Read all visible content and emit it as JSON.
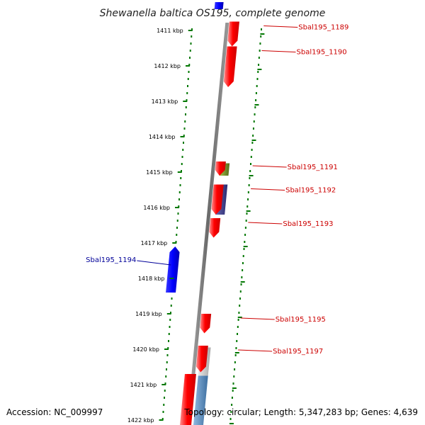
{
  "title": "Shewanella baltica OS195, complete genome",
  "footer": {
    "accession": "Accession: NC_009997",
    "topology": "Topology: circular; Length: 5,347,283 bp; Genes: 4,639"
  },
  "colors": {
    "forward_gene": "#ff0000",
    "reverse_gene": "#0000ff",
    "forward_label": "#cc0000",
    "reverse_label": "#000099",
    "scale_ticks": "#007700",
    "backbone": "#777777",
    "olive_feature": "#6b8e23",
    "purple_feature": "#3a3a8a",
    "gray_feature": "#c0c0c0",
    "lightblue_feature": "#5b8fc0"
  },
  "scale_ticks": [
    {
      "label": "1411 kbp",
      "kbp": 1411
    },
    {
      "label": "1412 kbp",
      "kbp": 1412
    },
    {
      "label": "1413 kbp",
      "kbp": 1413
    },
    {
      "label": "1414 kbp",
      "kbp": 1414
    },
    {
      "label": "1415 kbp",
      "kbp": 1415
    },
    {
      "label": "1416 kbp",
      "kbp": 1416
    },
    {
      "label": "1417 kbp",
      "kbp": 1417
    },
    {
      "label": "1418 kbp",
      "kbp": 1418
    },
    {
      "label": "1419 kbp",
      "kbp": 1419
    },
    {
      "label": "1420 kbp",
      "kbp": 1420
    },
    {
      "label": "1421 kbp",
      "kbp": 1421
    },
    {
      "label": "1422 kbp",
      "kbp": 1422
    }
  ],
  "genes": [
    {
      "name": "Sbal195_1189",
      "strand": "+",
      "start_kbp": 1410.75,
      "end_kbp": 1411.45,
      "track": "forward"
    },
    {
      "name": "Sbal195_1190",
      "strand": "+",
      "start_kbp": 1411.45,
      "end_kbp": 1412.6,
      "track": "forward"
    },
    {
      "name": "Sbal195_1191",
      "strand": "+",
      "start_kbp": 1414.7,
      "end_kbp": 1415.1,
      "track": "forward"
    },
    {
      "name": "Sbal195_1192",
      "strand": "+",
      "start_kbp": 1415.35,
      "end_kbp": 1416.2,
      "track": "forward"
    },
    {
      "name": "Sbal195_1193",
      "strand": "+",
      "start_kbp": 1416.3,
      "end_kbp": 1416.85,
      "track": "forward"
    },
    {
      "name": "Sbal195_1194",
      "strand": "-",
      "start_kbp": 1417.1,
      "end_kbp": 1418.4,
      "track": "reverse"
    },
    {
      "name": "Sbal195_1195",
      "strand": "+",
      "start_kbp": 1419.0,
      "end_kbp": 1419.55,
      "track": "forward"
    },
    {
      "name": "Sbal195_1197",
      "strand": "+",
      "start_kbp": 1419.9,
      "end_kbp": 1420.65,
      "track": "forward"
    }
  ],
  "other_features": [
    {
      "kind": "olive",
      "start_kbp": 1414.75,
      "end_kbp": 1415.1
    },
    {
      "kind": "purple",
      "start_kbp": 1415.35,
      "end_kbp": 1416.2
    },
    {
      "kind": "gray",
      "start_kbp": 1419.95,
      "end_kbp": 1420.75
    },
    {
      "kind": "lightblue",
      "start_kbp": 1420.75,
      "end_kbp": 1422.2
    },
    {
      "kind": "red-unlabeled",
      "start_kbp": 1420.7,
      "end_kbp": 1422.2
    },
    {
      "kind": "blue-top",
      "start_kbp": 1410.2,
      "end_kbp": 1410.4
    }
  ]
}
